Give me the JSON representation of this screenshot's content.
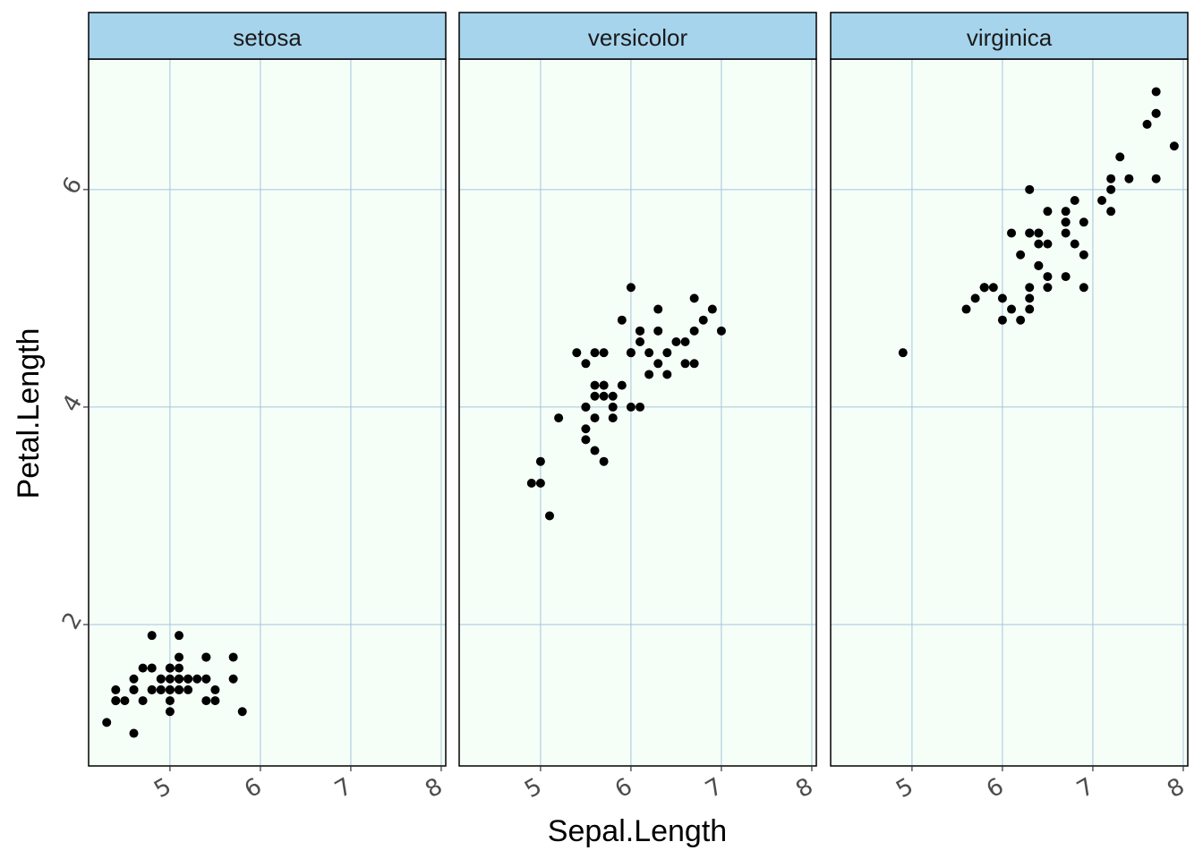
{
  "chart_data": {
    "type": "scatter",
    "facet_by": "Species",
    "xlabel": "Sepal.Length",
    "ylabel": "Petal.Length",
    "x_ticks": [
      5,
      6,
      7,
      8
    ],
    "y_ticks": [
      2,
      4,
      6
    ],
    "xlim": [
      4.1,
      8.05
    ],
    "ylim": [
      0.7,
      7.2
    ],
    "grid": true,
    "colors": {
      "panel_background": "#F5FFF8",
      "strip_background": "#A6D4EC",
      "grid_line": "#A6C3DE",
      "point": "#000000",
      "border": "#000000"
    },
    "panels": [
      {
        "strip": "setosa",
        "points": [
          [
            5.1,
            1.4
          ],
          [
            4.9,
            1.4
          ],
          [
            4.7,
            1.3
          ],
          [
            4.6,
            1.5
          ],
          [
            5.0,
            1.4
          ],
          [
            5.4,
            1.7
          ],
          [
            4.6,
            1.4
          ],
          [
            5.0,
            1.5
          ],
          [
            4.4,
            1.4
          ],
          [
            4.9,
            1.5
          ],
          [
            5.4,
            1.5
          ],
          [
            4.8,
            1.6
          ],
          [
            4.8,
            1.4
          ],
          [
            4.3,
            1.1
          ],
          [
            5.8,
            1.2
          ],
          [
            5.7,
            1.5
          ],
          [
            5.4,
            1.3
          ],
          [
            5.1,
            1.4
          ],
          [
            5.7,
            1.7
          ],
          [
            5.1,
            1.5
          ],
          [
            5.4,
            1.7
          ],
          [
            5.1,
            1.5
          ],
          [
            4.6,
            1.0
          ],
          [
            5.1,
            1.7
          ],
          [
            4.8,
            1.9
          ],
          [
            5.0,
            1.6
          ],
          [
            5.0,
            1.6
          ],
          [
            5.2,
            1.5
          ],
          [
            5.2,
            1.4
          ],
          [
            4.7,
            1.6
          ],
          [
            4.8,
            1.6
          ],
          [
            5.4,
            1.5
          ],
          [
            5.2,
            1.5
          ],
          [
            5.5,
            1.4
          ],
          [
            4.9,
            1.5
          ],
          [
            5.0,
            1.2
          ],
          [
            5.5,
            1.3
          ],
          [
            4.9,
            1.4
          ],
          [
            4.4,
            1.3
          ],
          [
            5.1,
            1.5
          ],
          [
            5.0,
            1.3
          ],
          [
            4.5,
            1.3
          ],
          [
            4.4,
            1.3
          ],
          [
            5.0,
            1.6
          ],
          [
            5.1,
            1.9
          ],
          [
            4.8,
            1.4
          ],
          [
            5.1,
            1.6
          ],
          [
            4.6,
            1.4
          ],
          [
            5.3,
            1.5
          ],
          [
            5.0,
            1.4
          ]
        ]
      },
      {
        "strip": "versicolor",
        "points": [
          [
            7.0,
            4.7
          ],
          [
            6.4,
            4.5
          ],
          [
            6.9,
            4.9
          ],
          [
            5.5,
            4.0
          ],
          [
            6.5,
            4.6
          ],
          [
            5.7,
            4.5
          ],
          [
            6.3,
            4.7
          ],
          [
            4.9,
            3.3
          ],
          [
            6.6,
            4.6
          ],
          [
            5.2,
            3.9
          ],
          [
            5.0,
            3.5
          ],
          [
            5.9,
            4.2
          ],
          [
            6.0,
            4.0
          ],
          [
            6.1,
            4.7
          ],
          [
            5.6,
            3.6
          ],
          [
            6.7,
            4.4
          ],
          [
            5.6,
            4.5
          ],
          [
            5.8,
            4.1
          ],
          [
            6.2,
            4.5
          ],
          [
            5.6,
            3.9
          ],
          [
            5.9,
            4.8
          ],
          [
            6.1,
            4.0
          ],
          [
            6.3,
            4.9
          ],
          [
            6.1,
            4.7
          ],
          [
            6.4,
            4.3
          ],
          [
            6.6,
            4.4
          ],
          [
            6.8,
            4.8
          ],
          [
            6.7,
            5.0
          ],
          [
            6.0,
            4.5
          ],
          [
            5.7,
            3.5
          ],
          [
            5.5,
            3.8
          ],
          [
            5.5,
            3.7
          ],
          [
            5.8,
            3.9
          ],
          [
            6.0,
            5.1
          ],
          [
            5.4,
            4.5
          ],
          [
            6.0,
            4.5
          ],
          [
            6.7,
            4.7
          ],
          [
            6.3,
            4.4
          ],
          [
            5.6,
            4.1
          ],
          [
            5.5,
            4.0
          ],
          [
            5.5,
            4.4
          ],
          [
            6.1,
            4.6
          ],
          [
            5.8,
            4.0
          ],
          [
            5.0,
            3.3
          ],
          [
            5.6,
            4.2
          ],
          [
            5.7,
            4.2
          ],
          [
            5.7,
            4.2
          ],
          [
            6.2,
            4.3
          ],
          [
            5.1,
            3.0
          ],
          [
            5.7,
            4.1
          ]
        ]
      },
      {
        "strip": "virginica",
        "points": [
          [
            6.3,
            6.0
          ],
          [
            5.8,
            5.1
          ],
          [
            7.1,
            5.9
          ],
          [
            6.3,
            5.6
          ],
          [
            6.5,
            5.8
          ],
          [
            7.6,
            6.6
          ],
          [
            4.9,
            4.5
          ],
          [
            7.3,
            6.3
          ],
          [
            6.7,
            5.8
          ],
          [
            7.2,
            6.1
          ],
          [
            6.5,
            5.1
          ],
          [
            6.4,
            5.3
          ],
          [
            6.8,
            5.5
          ],
          [
            5.7,
            5.0
          ],
          [
            5.8,
            5.1
          ],
          [
            6.4,
            5.3
          ],
          [
            6.5,
            5.5
          ],
          [
            7.7,
            6.7
          ],
          [
            7.7,
            6.9
          ],
          [
            6.0,
            5.0
          ],
          [
            6.9,
            5.7
          ],
          [
            5.6,
            4.9
          ],
          [
            7.7,
            6.7
          ],
          [
            6.3,
            4.9
          ],
          [
            6.7,
            5.7
          ],
          [
            7.2,
            6.0
          ],
          [
            6.2,
            4.8
          ],
          [
            6.1,
            4.9
          ],
          [
            6.4,
            5.6
          ],
          [
            7.2,
            5.8
          ],
          [
            7.4,
            6.1
          ],
          [
            7.9,
            6.4
          ],
          [
            6.4,
            5.6
          ],
          [
            6.3,
            5.1
          ],
          [
            6.1,
            5.6
          ],
          [
            7.7,
            6.1
          ],
          [
            6.3,
            5.6
          ],
          [
            6.4,
            5.5
          ],
          [
            6.0,
            4.8
          ],
          [
            6.9,
            5.4
          ],
          [
            6.7,
            5.6
          ],
          [
            6.9,
            5.1
          ],
          [
            5.8,
            5.1
          ],
          [
            6.8,
            5.9
          ],
          [
            6.7,
            5.7
          ],
          [
            6.7,
            5.2
          ],
          [
            6.3,
            5.0
          ],
          [
            6.5,
            5.2
          ],
          [
            6.2,
            5.4
          ],
          [
            5.9,
            5.1
          ]
        ]
      }
    ]
  }
}
